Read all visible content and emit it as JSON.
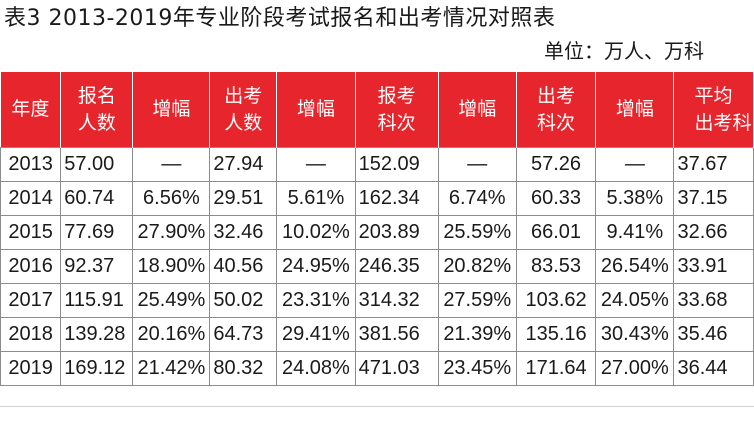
{
  "title": "表3  2013-2019年专业阶段考试报名和出考情况对照表",
  "unit": "单位：万人、万科",
  "headers": [
    [
      "年度"
    ],
    [
      "报名",
      "人数"
    ],
    [
      "增幅"
    ],
    [
      "出考",
      "人数"
    ],
    [
      "增幅"
    ],
    [
      "报考",
      "科次"
    ],
    [
      "增幅"
    ],
    [
      "出考",
      "科次"
    ],
    [
      "增幅"
    ],
    [
      "平均",
      "出考科"
    ]
  ],
  "rows": [
    [
      "2013",
      "57.00",
      "—",
      "27.94",
      "—",
      "152.09",
      "—",
      "57.26",
      "—",
      "37.67"
    ],
    [
      "2014",
      "60.74",
      "6.56%",
      "29.51",
      "5.61%",
      "162.34",
      "6.74%",
      "60.33",
      "5.38%",
      "37.15"
    ],
    [
      "2015",
      "77.69",
      "27.90%",
      "32.46",
      "10.02%",
      "203.89",
      "25.59%",
      "66.01",
      "9.41%",
      "32.66"
    ],
    [
      "2016",
      "92.37",
      "18.90%",
      "40.56",
      "24.95%",
      "246.35",
      "20.82%",
      "83.53",
      "26.54%",
      "33.91"
    ],
    [
      "2017",
      "115.91",
      "25.49%",
      "50.02",
      "23.31%",
      "314.32",
      "27.59%",
      "103.62",
      "24.05%",
      "33.68"
    ],
    [
      "2018",
      "139.28",
      "20.16%",
      "64.73",
      "29.41%",
      "381.56",
      "21.39%",
      "135.16",
      "30.43%",
      "35.46"
    ],
    [
      "2019",
      "169.12",
      "21.42%",
      "80.32",
      "24.08%",
      "471.03",
      "23.45%",
      "171.64",
      "27.00%",
      "36.44"
    ]
  ],
  "colors": {
    "header_bg": "#e6262c",
    "header_text": "#ffffff",
    "grid": "#8c8c8c"
  }
}
